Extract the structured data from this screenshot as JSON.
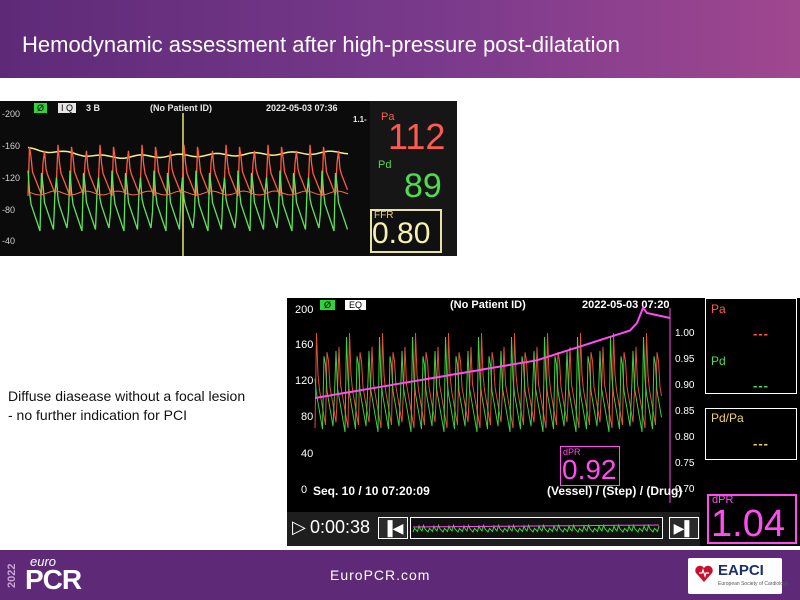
{
  "slide": {
    "title": "Hemodynamic assessment after high-pressure post-dilatation",
    "caption_line1": "Diffuse diasease without a focal lesion",
    "caption_line2": "- no further indication for PCI"
  },
  "footer": {
    "year": "2022",
    "logo_euro": "euro",
    "logo_pcr": "PCR",
    "url": "EuroPCR.com",
    "eapci_text": "EAPCI",
    "eapci_sub": "European Society of Cardiology"
  },
  "monitor_ffr": {
    "tag1": "Ø",
    "tag2": "I Q",
    "tag3": "3 B",
    "patient": "(No Patient ID)",
    "datetime": "2022-05-03 07:36",
    "scale_right": "1.1-",
    "ticks": [
      "-200",
      "-160",
      "-120",
      "-80",
      "-40"
    ],
    "pa_label": "Pa",
    "pa_value": "112",
    "pd_label": "Pd",
    "pd_value": "89",
    "ffr_label": "FFR",
    "ffr_value": "0.80"
  },
  "monitor_dpr": {
    "tag1": "Ø",
    "tag2": "EQ",
    "patient": "(No Patient ID)",
    "datetime": "2022-05-03 07:20",
    "ticks": [
      "200",
      "160",
      "120",
      "80",
      "40",
      "0"
    ],
    "right_ticks": [
      "1.00",
      "0.95",
      "0.90",
      "0.85",
      "0.80",
      "0.75",
      "0.70"
    ],
    "pa_label": "Pa",
    "pa_dash": "---",
    "pd_label": "Pd",
    "pd_dash": "---",
    "pdpa_label": "Pd/Pa",
    "pdpa_dash": "---",
    "dpr_small_label": "dPR",
    "dpr_small_value": "0.92",
    "seq": "Seq. 10 / 10  07:20:09",
    "vessel": "(Vessel) / (Step) / (Drug)",
    "play_glyph": "▷",
    "time": "0:00:38",
    "prev_glyph": "▐◀",
    "next_glyph": "▶▌",
    "dpr_big_label": "dPR",
    "dpr_big_value": "1.04"
  },
  "colors": {
    "header_purple": "#5e2a78",
    "pa_red": "#ff5a4f",
    "pd_green": "#4fdc4f",
    "ffr_yellow": "#f7f0b0",
    "dpr_magenta": "#ff4df0"
  }
}
